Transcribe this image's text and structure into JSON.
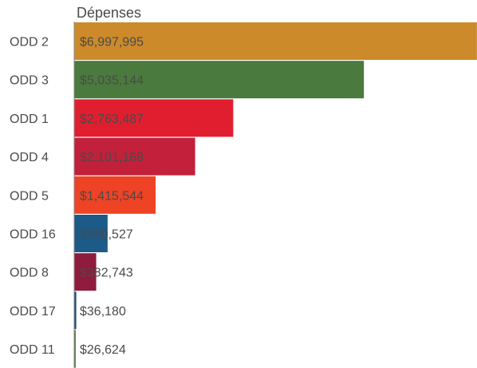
{
  "chart_data": {
    "type": "bar",
    "orientation": "horizontal",
    "title": "Dépenses",
    "categories": [
      "ODD 2",
      "ODD 3",
      "ODD 1",
      "ODD 4",
      "ODD 5",
      "ODD 16",
      "ODD 8",
      "ODD 17",
      "ODD 11"
    ],
    "values": [
      6997995,
      5035144,
      2763487,
      2101168,
      1415544,
      580527,
      382743,
      36180,
      26624
    ],
    "value_labels": [
      "$6,997,995",
      "$5,035,144",
      "$2,763,487",
      "$2,101,168",
      "$1,415,544",
      "$580,527",
      "$382,743",
      "$36,180",
      "$26,624"
    ],
    "colors": [
      "#cc8a2a",
      "#4a7a3d",
      "#e11e2f",
      "#c3203b",
      "#ee4325",
      "#1c5a88",
      "#8f1b3e",
      "#1a4b7a",
      "#4a7a3d"
    ],
    "xlim": [
      0,
      7000000
    ],
    "xlabel": "",
    "ylabel": "",
    "grid": false,
    "legend": "none"
  }
}
